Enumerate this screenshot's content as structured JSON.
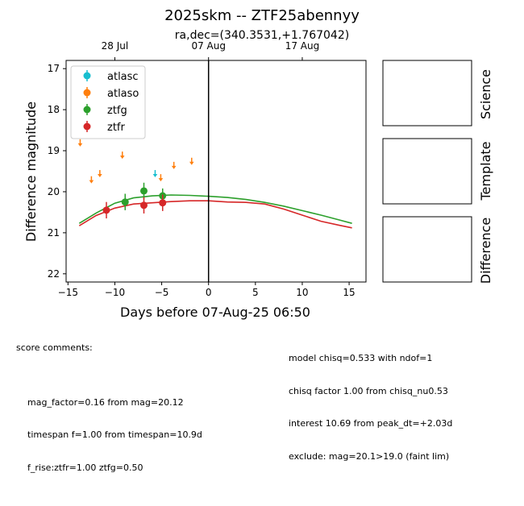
{
  "chart_data": {
    "type": "scatter",
    "title": "2025skm -- ZTF25abennyy",
    "subtitle": "ra,dec=(340.3531,+1.767042)",
    "xlabel": "Days before 07-Aug-25 06:50",
    "ylabel": "Difference magnitude",
    "xlim": [
      -15.2,
      16.8
    ],
    "ylim": [
      22.2,
      16.8
    ],
    "y_inverted": true,
    "x_ticks": [
      -15,
      -10,
      -5,
      0,
      5,
      10,
      15
    ],
    "y_ticks": [
      17,
      18,
      19,
      20,
      21,
      22
    ],
    "top_axis_ticks": [
      {
        "x": -10.0,
        "label": "28 Jul"
      },
      {
        "x": 0.0,
        "label": "07 Aug"
      },
      {
        "x": 10.0,
        "label": "17 Aug"
      }
    ],
    "reference_line_x": 0,
    "legend_position": "upper-left",
    "series": [
      {
        "name": "atlasc",
        "color": "#17becf",
        "upper_limits": [
          {
            "x": -5.7,
            "y": 19.55
          }
        ],
        "points": []
      },
      {
        "name": "atlaso",
        "color": "#ff7f0e",
        "upper_limits": [
          {
            "x": -13.7,
            "y": 18.8
          },
          {
            "x": -12.5,
            "y": 19.7
          },
          {
            "x": -11.6,
            "y": 19.55
          },
          {
            "x": -9.2,
            "y": 19.1
          },
          {
            "x": -5.1,
            "y": 19.65
          },
          {
            "x": -3.7,
            "y": 19.35
          },
          {
            "x": -1.8,
            "y": 19.25
          }
        ],
        "points": []
      },
      {
        "name": "ztfg",
        "color": "#2ca02c",
        "upper_limits": [],
        "points": [
          {
            "x": -8.9,
            "y": 20.25,
            "err": 0.2
          },
          {
            "x": -6.9,
            "y": 19.98,
            "err": 0.2
          },
          {
            "x": -4.9,
            "y": 20.1,
            "err": 0.18
          }
        ]
      },
      {
        "name": "ztfr",
        "color": "#d62728",
        "upper_limits": [],
        "points": [
          {
            "x": -10.9,
            "y": 20.45,
            "err": 0.2
          },
          {
            "x": -6.9,
            "y": 20.33,
            "err": 0.2
          },
          {
            "x": -4.9,
            "y": 20.27,
            "err": 0.2
          }
        ]
      }
    ],
    "model_curves": [
      {
        "band": "ztfg",
        "color": "#2ca02c",
        "x": [
          -13.8,
          -12,
          -10,
          -8,
          -6,
          -4,
          -2,
          0,
          2,
          4,
          6,
          8,
          10,
          12,
          14,
          15.3
        ],
        "y": [
          20.77,
          20.52,
          20.28,
          20.15,
          20.1,
          20.08,
          20.09,
          20.11,
          20.14,
          20.19,
          20.26,
          20.35,
          20.46,
          20.57,
          20.69,
          20.77
        ]
      },
      {
        "band": "ztfr",
        "color": "#d62728",
        "x": [
          -13.8,
          -12,
          -10,
          -8,
          -6,
          -4,
          -2,
          0,
          2,
          4,
          6,
          7,
          8,
          10,
          12,
          14,
          15.3
        ],
        "y": [
          20.83,
          20.58,
          20.4,
          20.3,
          20.27,
          20.24,
          20.22,
          20.22,
          20.25,
          20.26,
          20.3,
          20.36,
          20.42,
          20.57,
          20.72,
          20.82,
          20.88
        ]
      }
    ]
  },
  "side_panels": [
    "Science",
    "Template",
    "Difference"
  ],
  "score_comments": {
    "header": "score comments:",
    "left": [
      "mag_factor=0.16 from mag=20.12",
      "timespan f=1.00 from timespan=10.9d",
      "f_rise:ztfr=1.00 ztfg=0.50"
    ],
    "right": [
      "model chisq=0.533 with ndof=1",
      "chisq factor 1.00 from chisq_nu0.53",
      "interest 10.69 from peak_dt=+2.03d",
      "exclude: mag=20.1>19.0 (faint lim)"
    ]
  }
}
